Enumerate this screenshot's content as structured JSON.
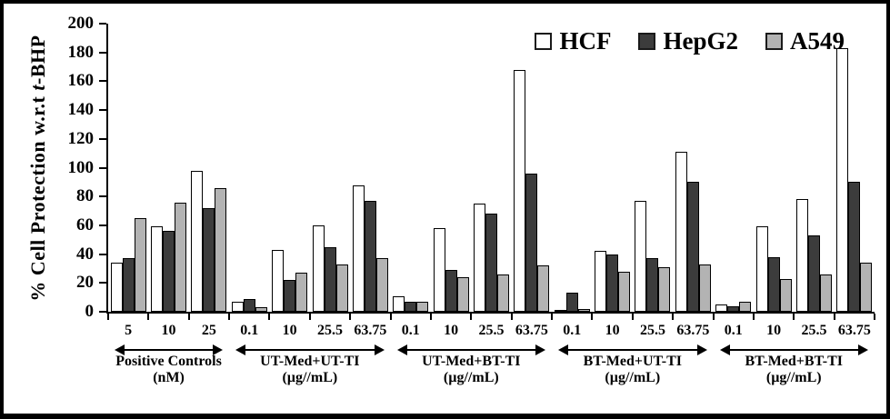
{
  "chart_data": {
    "type": "bar",
    "title": "",
    "xlabel": "",
    "ylabel": "% Cell Protection w.r.t t-BHP",
    "ylabel_parts": {
      "prefix": "% Cell Protection w.r.t ",
      "italic": "t",
      "suffix": "-BHP"
    },
    "ylim": [
      0,
      200
    ],
    "ytick_step": 20,
    "grid": false,
    "legend_position": "top-right",
    "bar_outline_color": "#000000",
    "legend": [
      {
        "name": "HCF",
        "color": "#ffffff"
      },
      {
        "name": "HepG2",
        "color": "#3c3c3c"
      },
      {
        "name": "A549",
        "color": "#b3b3b3"
      }
    ],
    "groups": [
      {
        "label": "Positive Controls",
        "unit": "(nM)",
        "categories": [
          "5",
          "10",
          "25"
        ],
        "values": {
          "HCF": [
            34,
            59,
            98
          ],
          "HepG2": [
            37,
            56,
            72
          ],
          "A549": [
            65,
            76,
            86
          ]
        }
      },
      {
        "label": "UT-Med+UT-TI",
        "unit": "(µg//mL)",
        "categories": [
          "0.1",
          "10",
          "25.5",
          "63.75"
        ],
        "values": {
          "HCF": [
            7,
            43,
            60,
            88
          ],
          "HepG2": [
            9,
            22,
            45,
            77
          ],
          "A549": [
            3,
            27,
            33,
            37
          ]
        }
      },
      {
        "label": "UT-Med+BT-TI",
        "unit": "(µg//mL)",
        "categories": [
          "0.1",
          "10",
          "25.5",
          "63.75"
        ],
        "values": {
          "HCF": [
            11,
            58,
            75,
            168
          ],
          "HepG2": [
            7,
            29,
            68,
            96
          ],
          "A549": [
            7,
            24,
            26,
            32
          ]
        }
      },
      {
        "label": "BT-Med+UT-TI",
        "unit": "(µg//mL)",
        "categories": [
          "0.1",
          "10",
          "25.5",
          "63.75"
        ],
        "values": {
          "HCF": [
            1,
            42,
            77,
            111
          ],
          "HepG2": [
            13,
            40,
            37,
            90
          ],
          "A549": [
            2,
            28,
            31,
            33
          ]
        }
      },
      {
        "label": "BT-Med+BT-TI",
        "unit": "(µg//mL)",
        "categories": [
          "0.1",
          "10",
          "25.5",
          "63.75"
        ],
        "values": {
          "HCF": [
            5,
            59,
            78,
            183
          ],
          "HepG2": [
            4,
            38,
            53,
            90
          ],
          "A549": [
            7,
            23,
            26,
            34
          ]
        }
      }
    ]
  }
}
